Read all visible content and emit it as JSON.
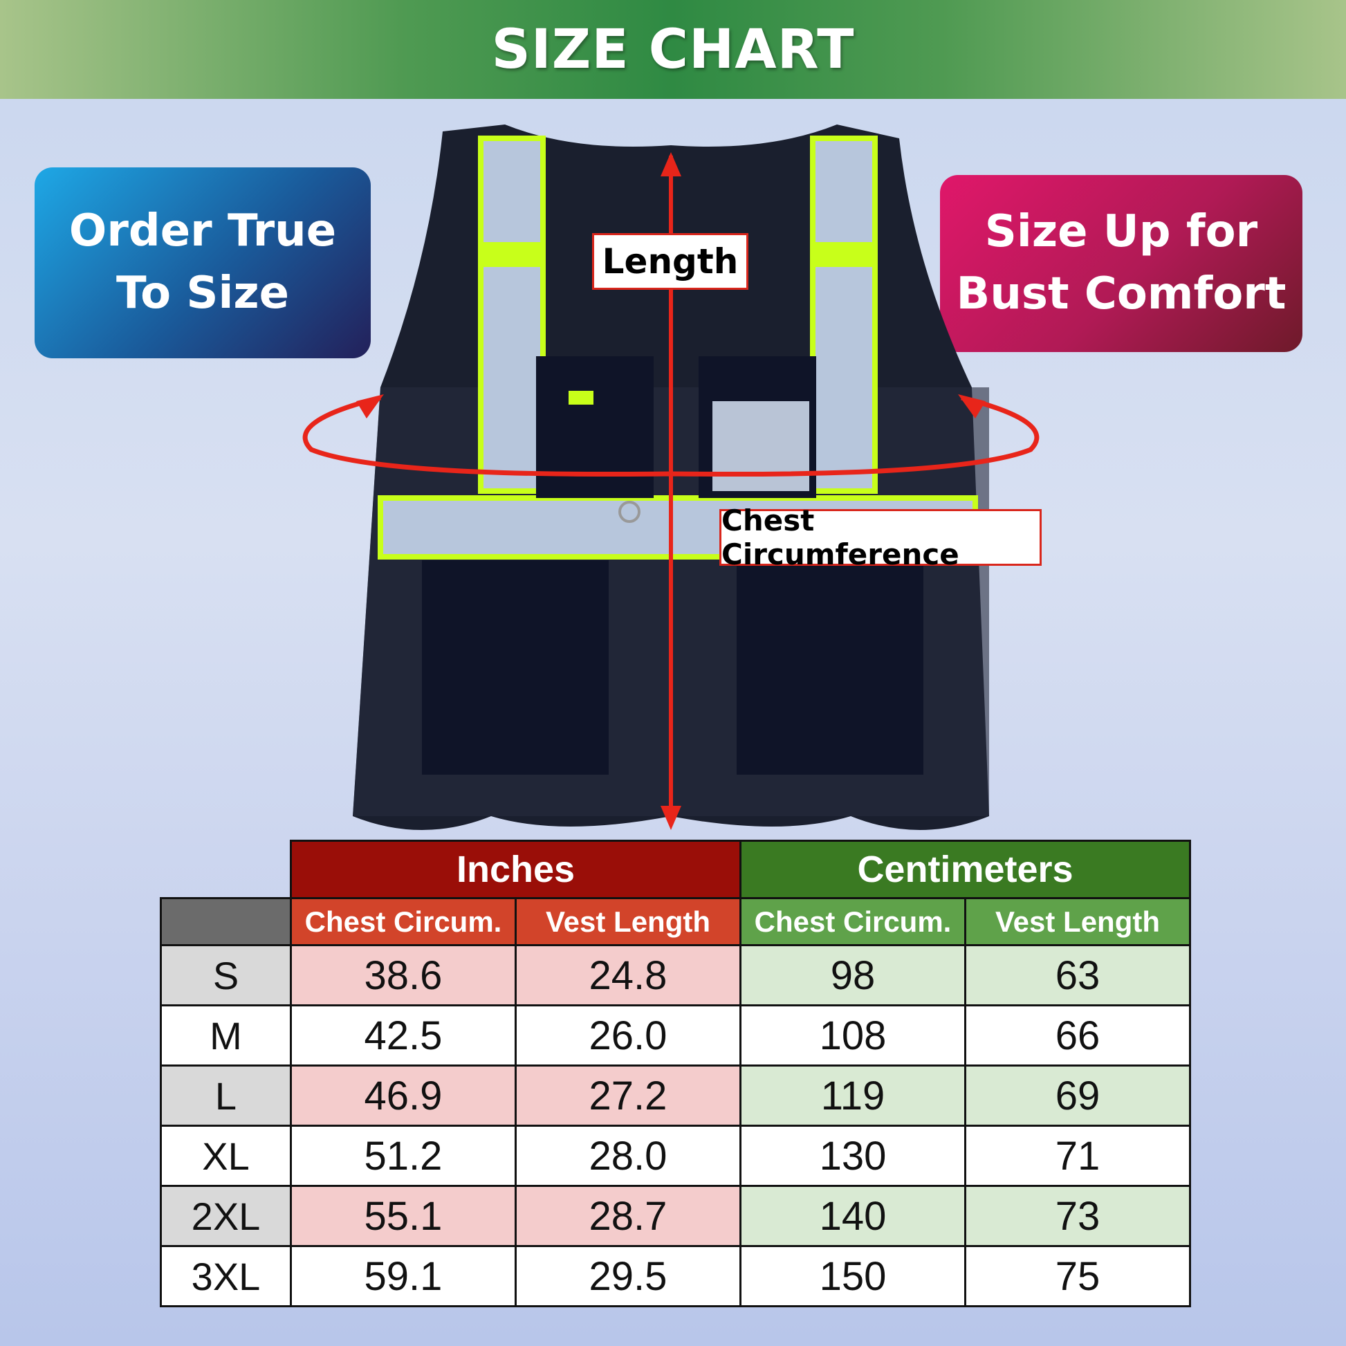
{
  "header": {
    "title": "SIZE CHART"
  },
  "badges": {
    "left": {
      "line1": "Order True",
      "line2": "To Size"
    },
    "right": {
      "line1": "Size Up for",
      "line2": "Bust Comfort"
    }
  },
  "diagram": {
    "length_label": "Length",
    "chest_label": "Chest Circumference",
    "arrow_color": "#e8251a"
  },
  "table": {
    "groups": [
      "Inches",
      "Centimeters"
    ],
    "columns": [
      "Chest Circum.",
      "Vest Length",
      "Chest Circum.",
      "Vest Length"
    ],
    "rows": [
      {
        "size": "S",
        "values": [
          "38.6",
          "24.8",
          "98",
          "63"
        ]
      },
      {
        "size": "M",
        "values": [
          "42.5",
          "26.0",
          "108",
          "66"
        ]
      },
      {
        "size": "L",
        "values": [
          "46.9",
          "27.2",
          "119",
          "69"
        ]
      },
      {
        "size": "XL",
        "values": [
          "51.2",
          "28.0",
          "130",
          "71"
        ]
      },
      {
        "size": "2XL",
        "values": [
          "55.1",
          "28.7",
          "140",
          "73"
        ]
      },
      {
        "size": "3XL",
        "values": [
          "59.1",
          "29.5",
          "150",
          "75"
        ]
      }
    ]
  }
}
